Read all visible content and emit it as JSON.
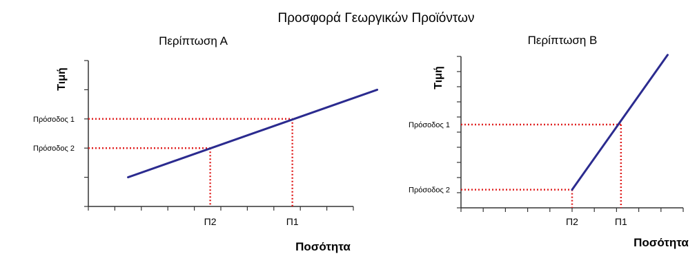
{
  "figure": {
    "title": "Προσφορά Γεωργικών Προϊόντων"
  },
  "chart_data": [
    {
      "type": "line",
      "title": "Περίπτωση Α",
      "xlabel": "Ποσότητα",
      "ylabel": "Τιμή",
      "xlim": [
        0,
        10
      ],
      "ylim": [
        0,
        5
      ],
      "y_ticks": [
        0,
        1,
        2,
        3,
        4,
        5
      ],
      "x_ticks": [
        0,
        1,
        2,
        3,
        4,
        5,
        6,
        7,
        8,
        9,
        10
      ],
      "series": [
        {
          "x": [
            1.5,
            10.9
          ],
          "y": [
            1.0,
            4.0
          ]
        }
      ],
      "levels": [
        {
          "label": "Πρόσοδος 1",
          "y": 3.0,
          "x": 7.7,
          "x_label": "Π1"
        },
        {
          "label": "Πρόσοδος 2",
          "y": 2.0,
          "x": 4.6,
          "x_label": "Π2"
        }
      ],
      "line_color": "#2b2b8f",
      "guide_color": "#e02020",
      "grid": false
    },
    {
      "type": "line",
      "title": "Περίπτωση Β",
      "xlabel": "Ποσότητα",
      "ylabel": "Τιμή",
      "xlim": [
        0,
        10
      ],
      "ylim": [
        0,
        10
      ],
      "y_ticks": [
        0,
        1,
        2,
        3,
        4,
        5,
        6,
        7,
        8,
        9,
        10
      ],
      "x_ticks": [
        0,
        1,
        2,
        3,
        4,
        5,
        6,
        7,
        8,
        9,
        10
      ],
      "series": [
        {
          "x": [
            5.0,
            9.3
          ],
          "y": [
            1.2,
            10.1
          ]
        }
      ],
      "levels": [
        {
          "label": "Πρόσοδος 1",
          "y": 5.5,
          "x": 7.2,
          "x_label": "Π1"
        },
        {
          "label": "Πρόσοδος 2",
          "y": 1.2,
          "x": 5.0,
          "x_label": "Π2"
        }
      ],
      "line_color": "#2b2b8f",
      "guide_color": "#e02020",
      "grid": false
    }
  ]
}
